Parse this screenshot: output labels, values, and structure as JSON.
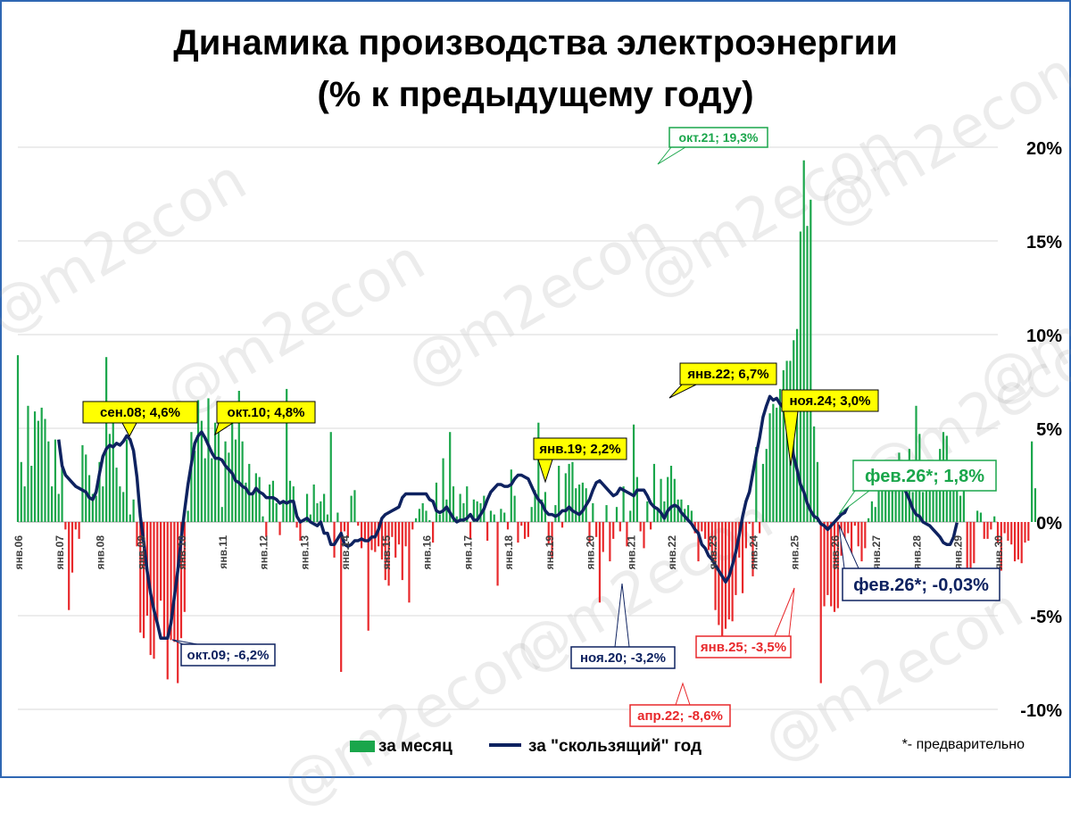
{
  "title_line1": "Динамика производства электроэнергии",
  "title_line2": "(% к предыдущему году)",
  "legend": {
    "monthly": "за месяц",
    "rolling": "за \"скользящий\" год"
  },
  "footnote": "*- предварительно",
  "watermark": "@m2econ",
  "colors": {
    "pos": "#1aa64b",
    "neg": "#e8282b",
    "line": "#0e2260",
    "callout_fill": "#ffff00",
    "frame": "#2f67b3"
  },
  "chart_data": {
    "type": "bar+line",
    "ylim": [
      -10,
      20
    ],
    "y_ticks": [
      "20%",
      "15%",
      "10%",
      "5%",
      "0%",
      "-5%",
      "-10%"
    ],
    "x_ticks": [
      "янв.06",
      "янв.07",
      "янв.08",
      "янв.09",
      "янв.10",
      "янв.11",
      "янв.12",
      "янв.13",
      "янв.14",
      "янв.15",
      "янв.16",
      "янв.17",
      "янв.18",
      "янв.19",
      "янв.20",
      "янв.21",
      "янв.22",
      "янв.23",
      "янв.24",
      "янв.25",
      "янв.26",
      "янв.27",
      "янв.28",
      "янв.29",
      "янв.30"
    ],
    "start": "2006-01",
    "monthly": [
      8.9,
      3.2,
      1.9,
      6.2,
      3.0,
      5.9,
      5.4,
      6.1,
      5.5,
      4.3,
      1.9,
      4.4,
      1.5,
      3.2,
      -0.4,
      -4.7,
      -2.7,
      -0.4,
      -0.9,
      4.1,
      3.6,
      2.5,
      1.5,
      1.4,
      3.2,
      1.9,
      8.8,
      4.7,
      6.2,
      2.9,
      1.9,
      1.6,
      4.4,
      0.4,
      1.2,
      -1.3,
      -5.9,
      -6.2,
      -5.0,
      -7.1,
      -7.3,
      -5.5,
      -4.2,
      -6.2,
      -8.4,
      -6.3,
      -6.4,
      -8.6,
      -6.2,
      -4.8,
      0.6,
      4.8,
      3.8,
      6.5,
      5.4,
      3.4,
      6.6,
      3.4,
      5.3,
      6.1,
      0.8,
      4.3,
      3.7,
      5.8,
      4.4,
      7.0,
      4.3,
      2.1,
      3.1,
      1.6,
      2.6,
      2.4,
      0.3,
      -0.8,
      2.0,
      2.2,
      1.0,
      -0.7,
      1.0,
      7.1,
      2.2,
      1.9,
      -0.3,
      -1.0,
      0.1,
      1.5,
      0.4,
      2.0,
      1.0,
      1.1,
      1.5,
      0.4,
      4.8,
      -1.9,
      0.5,
      -8.0,
      -0.5,
      -0.8,
      1.4,
      1.7,
      -0.2,
      -1.4,
      -1.0,
      -5.8,
      -1.5,
      -1.6,
      -1.3,
      -2.0,
      -3.1,
      -3.4,
      -0.8,
      -1.9,
      -1.2,
      -3.1,
      -1.3,
      -4.3,
      -0.4,
      0.2,
      0.7,
      1.0,
      0.6,
      0.1,
      -1.1,
      2.1,
      0.4,
      3.4,
      1.2,
      4.8,
      1.9,
      0.3,
      1.5,
      1.0,
      1.9,
      -0.9,
      1.2,
      1.1,
      1.0,
      1.4,
      -1.0,
      0.6,
      0.4,
      -3.4,
      0.7,
      0.5,
      -0.4,
      2.8,
      1.4,
      -1.1,
      -0.2,
      -0.9,
      -0.8,
      0.8,
      1.7,
      5.3,
      1.2,
      1.6,
      -1.2,
      -1.9,
      0.9,
      3.0,
      -0.3,
      2.6,
      3.1,
      3.2,
      1.8,
      2.0,
      2.1,
      1.8,
      -1.1,
      1.0,
      -0.8,
      -4.3,
      -1.6,
      0.9,
      -2.1,
      -0.9,
      0.8,
      -0.5,
      1.9,
      -1.3,
      0.6,
      5.2,
      2.4,
      -0.5,
      -1.4,
      1.1,
      -0.4,
      3.1,
      0.7,
      2.3,
      1.1,
      2.4,
      3.0,
      2.3,
      1.2,
      1.2,
      0.7,
      0.9,
      0.6,
      -0.6,
      -2.1,
      -0.5,
      -0.9,
      -1.5,
      -2.0,
      -4.7,
      -5.5,
      -6.1,
      -5.7,
      -5.2,
      -5.3,
      -3.9,
      -1.9,
      -3.8,
      -1.4,
      -0.1,
      -2.9,
      4.0,
      -0.6,
      3.1,
      3.9,
      5.8,
      6.3,
      6.1,
      7.1,
      8.1,
      8.6,
      8.6,
      9.7,
      10.3,
      15.5,
      19.3,
      15.8,
      17.2,
      5.1,
      3.2,
      -8.6,
      -4.5,
      -3.9,
      -4.5,
      -4.8,
      -4.6,
      -1.8,
      -0.9,
      -0.6,
      -2.2,
      -0.2,
      -1.3,
      -2.1,
      -1.4,
      0.2,
      1.1,
      0.8,
      2.3,
      3.2,
      2.2,
      2.9,
      2.5,
      1.7,
      3.7,
      1.9,
      3.2,
      3.9,
      1.6,
      6.2,
      4.7,
      1.6,
      2.4,
      1.8,
      3.1,
      2.1,
      3.9,
      4.8,
      4.6,
      2.3,
      2.4,
      2.5,
      1.4,
      2.2,
      -3.5,
      -3.1,
      -2.2,
      0.6,
      0.5,
      -0.9,
      -0.9,
      -0.4,
      0.3,
      -1.1,
      -2.6,
      -0.6,
      -1.0,
      -1.2,
      -2.1,
      -2.0,
      -2.2,
      -1.1,
      -1.0,
      4.3,
      1.8
    ],
    "rolling_start": "2007-01",
    "rolling": [
      4.4,
      3.0,
      2.5,
      2.3,
      2.1,
      1.9,
      1.8,
      1.7,
      1.6,
      1.3,
      1.2,
      1.6,
      2.6,
      3.5,
      3.9,
      4.1,
      4.0,
      4.2,
      4.1,
      4.3,
      4.6,
      4.4,
      3.8,
      2.4,
      0.3,
      -1.1,
      -2.6,
      -3.8,
      -4.7,
      -5.4,
      -6.2,
      -6.2,
      -6.2,
      -5.4,
      -4.0,
      -2.6,
      -0.9,
      0.6,
      2.0,
      3.1,
      4.2,
      4.6,
      4.8,
      4.5,
      4.1,
      3.7,
      3.4,
      3.4,
      3.3,
      3.0,
      2.8,
      2.6,
      2.2,
      2.1,
      1.9,
      1.8,
      1.5,
      1.5,
      1.8,
      1.6,
      1.5,
      1.3,
      1.3,
      1.3,
      1.2,
      1.0,
      1.1,
      1.0,
      1.1,
      1.1,
      0.3,
      0.0,
      0.1,
      0.2,
      0.0,
      -0.1,
      -0.2,
      0.0,
      -0.6,
      -0.6,
      -1.2,
      -1.2,
      -0.9,
      -0.6,
      -1.2,
      -1.3,
      -1.2,
      -1.0,
      -1.0,
      -0.9,
      -1.0,
      -1.0,
      -0.8,
      -0.8,
      -0.4,
      0.2,
      0.4,
      0.5,
      0.6,
      0.7,
      0.8,
      1.3,
      1.5,
      1.5,
      1.5,
      1.5,
      1.5,
      1.5,
      1.5,
      1.2,
      1.1,
      0.6,
      0.5,
      0.6,
      0.8,
      0.5,
      0.2,
      0.0,
      0.1,
      0.1,
      0.2,
      0.4,
      0.1,
      0.1,
      0.4,
      0.7,
      1.2,
      1.6,
      1.8,
      2.0,
      2.0,
      1.9,
      1.9,
      2.0,
      2.3,
      2.5,
      2.5,
      2.4,
      2.3,
      1.9,
      1.5,
      1.2,
      1.0,
      0.6,
      0.4,
      0.4,
      0.3,
      0.4,
      0.6,
      0.6,
      0.8,
      0.6,
      0.5,
      0.4,
      0.6,
      0.9,
      1.2,
      1.7,
      2.1,
      2.2,
      2.0,
      1.8,
      1.6,
      1.4,
      1.5,
      1.8,
      1.7,
      1.6,
      1.5,
      1.4,
      1.7,
      1.7,
      1.7,
      1.4,
      1.0,
      0.8,
      0.7,
      0.5,
      0.2,
      0.6,
      0.8,
      0.9,
      0.8,
      0.5,
      0.3,
      0.1,
      -0.1,
      -0.4,
      -0.6,
      -1.2,
      -1.4,
      -1.8,
      -2.0,
      -2.3,
      -2.6,
      -2.9,
      -3.2,
      -2.9,
      -2.3,
      -1.6,
      -0.7,
      0.3,
      1.1,
      1.6,
      2.6,
      3.6,
      4.5,
      5.6,
      6.2,
      6.7,
      6.5,
      6.6,
      6.3,
      6.1,
      5.6,
      4.6,
      3.5,
      2.8,
      2.0,
      1.6,
      1.0,
      0.6,
      0.3,
      0.2,
      -0.1,
      -0.2,
      -0.4,
      -0.2,
      0.0,
      0.2,
      0.4,
      0.5,
      0.9,
      1.1,
      1.4,
      1.9,
      2.2,
      2.5,
      2.6,
      2.5,
      2.7,
      2.7,
      2.9,
      2.8,
      2.9,
      2.9,
      3.0,
      2.6,
      2.0,
      1.6,
      1.2,
      0.7,
      0.4,
      0.3,
      0.0,
      -0.1,
      -0.2,
      -0.4,
      -0.6,
      -0.8,
      -1.1,
      -1.2,
      -1.2,
      -0.8,
      -0.03
    ],
    "callouts": [
      {
        "label": "сен.08; 4,6%",
        "style": "yellow"
      },
      {
        "label": "окт.10; 4,8%",
        "style": "yellow"
      },
      {
        "label": "янв.22; 6,7%",
        "style": "yellow"
      },
      {
        "label": "янв.19; 2,2%",
        "style": "yellow"
      },
      {
        "label": "ноя.24; 3,0%",
        "style": "yellow"
      },
      {
        "label": "окт.21; 19,3%",
        "style": "green"
      },
      {
        "label": "фев.26*; 1,8%",
        "style": "green"
      },
      {
        "label": "окт.09; -6,2%",
        "style": "navy"
      },
      {
        "label": "ноя.20; -3,2%",
        "style": "navy"
      },
      {
        "label": "фев.26*; -0,03%",
        "style": "navy"
      },
      {
        "label": "апр.22; -8,6%",
        "style": "red"
      },
      {
        "label": "янв.25; -3,5%",
        "style": "red"
      }
    ]
  }
}
